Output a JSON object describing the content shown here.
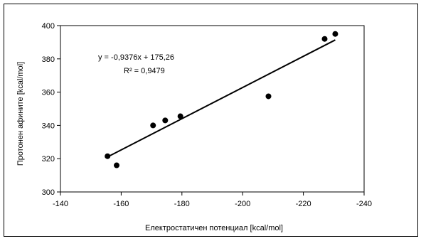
{
  "chart_data": {
    "type": "scatter",
    "xlabel": "Електростатичен потенциал [kcal/mol]",
    "ylabel": "Протонен афините [kcal/mol]",
    "x_axis": {
      "min": -140,
      "max": -240,
      "reversed": true,
      "ticks": [
        -140,
        -160,
        -180,
        -200,
        -220,
        -240
      ]
    },
    "y_axis": {
      "min": 300,
      "max": 400,
      "ticks": [
        300,
        320,
        340,
        360,
        380,
        400
      ]
    },
    "x_tick_labels": [
      "-140",
      "-160",
      "-180",
      "-200",
      "-220",
      "-240"
    ],
    "y_tick_labels": [
      "300",
      "320",
      "340",
      "360",
      "380",
      "400"
    ],
    "points": [
      {
        "x": -155.5,
        "y": 321.5
      },
      {
        "x": -158.5,
        "y": 316.0
      },
      {
        "x": -170.5,
        "y": 340.0
      },
      {
        "x": -174.5,
        "y": 343.0
      },
      {
        "x": -179.5,
        "y": 345.5
      },
      {
        "x": -208.5,
        "y": 357.5
      },
      {
        "x": -227.0,
        "y": 392.0
      },
      {
        "x": -230.5,
        "y": 395.0
      }
    ],
    "trendline": {
      "slope": -0.9376,
      "intercept": 175.26,
      "x_range": [
        -155.5,
        -230.5
      ]
    },
    "annotations": {
      "equation": "y = -0,9376x + 175,26",
      "r_squared": "R² = 0,9479"
    },
    "grid": false,
    "legend": "none",
    "marker_color": "#000000",
    "line_color": "#000000"
  }
}
